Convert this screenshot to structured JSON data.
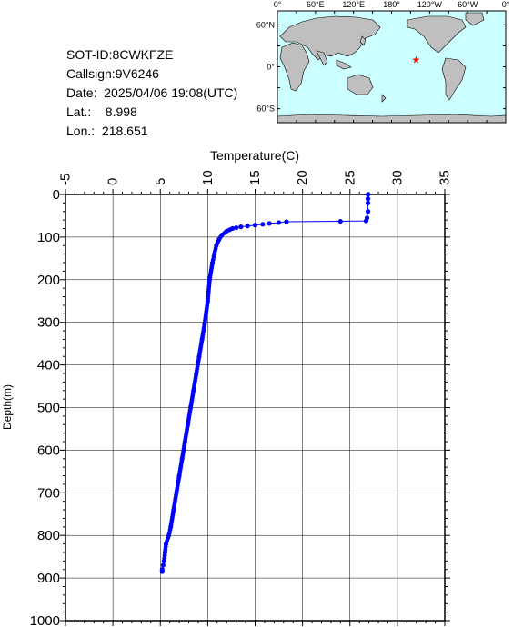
{
  "info": {
    "sot_id": "SOT-ID:8CWKFZE",
    "callsign": "Callsign:9V6246",
    "date": "Date:  2025/04/06 19:08(UTC)",
    "lat": "Lat.:    8.998",
    "lon": "Lon.:  218.651"
  },
  "map": {
    "lon_labels": [
      "0°",
      "60°E",
      "120°E",
      "180°",
      "120°W",
      "60°W",
      "0°"
    ],
    "lat_labels": [
      "60°N",
      "0°",
      "60°S"
    ],
    "marker": {
      "lat": 8.998,
      "lon": 218.651,
      "color": "#ff0000"
    },
    "ocean_color": "#ccffff",
    "land_color": "#bfbfbf"
  },
  "chart_data": {
    "type": "line",
    "xlabel": "Temperature(C)",
    "ylabel": "Depth(m)",
    "xlim": [
      -5,
      35
    ],
    "ylim": [
      1000,
      0
    ],
    "x_ticks": [
      -5,
      0,
      5,
      10,
      15,
      20,
      25,
      30,
      35
    ],
    "y_ticks": [
      0,
      100,
      200,
      300,
      400,
      500,
      600,
      700,
      800,
      900,
      1000
    ],
    "grid": true,
    "series_color": "#0000ff",
    "x": [
      26.9,
      26.9,
      26.9,
      26.9,
      26.8,
      26.7,
      24.0,
      18.3,
      17.5,
      16.5,
      15.8,
      15.0,
      14.2,
      13.5,
      13.0,
      12.6,
      12.3,
      12.0,
      11.8,
      11.5,
      11.2,
      10.9,
      10.7,
      10.5,
      10.2,
      10.0,
      9.7,
      9.4,
      9.1,
      8.8,
      8.5,
      8.2,
      7.9,
      7.6,
      7.3,
      7.0,
      6.7,
      6.4,
      6.1,
      5.9,
      5.6,
      5.5,
      5.4,
      5.3,
      5.2,
      5.2
    ],
    "y": [
      0,
      10,
      20,
      40,
      55,
      62,
      63,
      64,
      66,
      68,
      70,
      72,
      74,
      76,
      78,
      80,
      83,
      86,
      90,
      95,
      105,
      120,
      140,
      160,
      200,
      250,
      300,
      340,
      380,
      420,
      460,
      500,
      540,
      580,
      620,
      660,
      700,
      740,
      780,
      800,
      820,
      840,
      860,
      870,
      880,
      885
    ]
  }
}
